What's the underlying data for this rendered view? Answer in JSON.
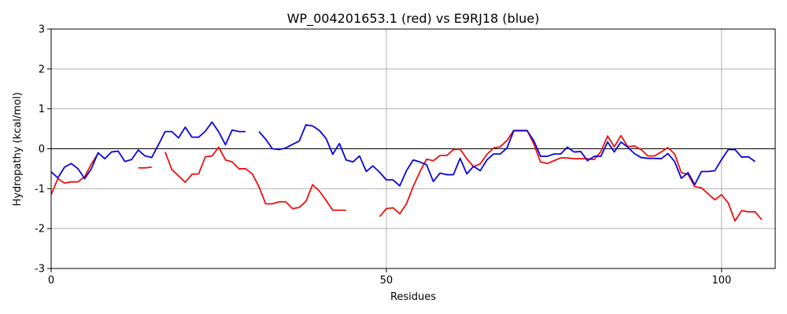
{
  "chart_data": {
    "type": "line",
    "title": "WP_004201653.1 (red) vs E9RJ18 (blue)",
    "xlabel": "Residues",
    "ylabel": "Hydropathy (kcal/mol)",
    "xlim": [
      0,
      108
    ],
    "ylim": [
      -3,
      3
    ],
    "xticks": [
      0,
      50,
      100
    ],
    "yticks": [
      -3,
      -2,
      -1,
      0,
      1,
      2,
      3
    ],
    "grid": true,
    "series": [
      {
        "color": "#e8110f",
        "segments": [
          [
            [
              0,
              -1.15
            ],
            [
              1,
              -0.75
            ],
            [
              2,
              -0.86
            ],
            [
              3,
              -0.83
            ],
            [
              4,
              -0.83
            ],
            [
              5,
              -0.7
            ],
            [
              6,
              -0.38
            ],
            [
              7,
              -0.12
            ]
          ],
          [
            [
              13,
              -0.48
            ],
            [
              14,
              -0.48
            ],
            [
              15,
              -0.46
            ]
          ],
          [
            [
              17,
              -0.08
            ],
            [
              18,
              -0.52
            ],
            [
              19,
              -0.68
            ],
            [
              20,
              -0.84
            ],
            [
              21,
              -0.64
            ],
            [
              22,
              -0.63
            ],
            [
              23,
              -0.2
            ],
            [
              24,
              -0.18
            ],
            [
              25,
              0.04
            ],
            [
              26,
              -0.28
            ],
            [
              27,
              -0.33
            ],
            [
              28,
              -0.5
            ],
            [
              29,
              -0.5
            ],
            [
              30,
              -0.63
            ],
            [
              31,
              -0.95
            ],
            [
              32,
              -1.38
            ],
            [
              33,
              -1.38
            ],
            [
              34,
              -1.33
            ],
            [
              35,
              -1.33
            ],
            [
              36,
              -1.5
            ],
            [
              37,
              -1.47
            ],
            [
              38,
              -1.32
            ],
            [
              39,
              -0.9
            ],
            [
              40,
              -1.06
            ],
            [
              41,
              -1.29
            ],
            [
              42,
              -1.54
            ],
            [
              43,
              -1.54
            ],
            [
              44,
              -1.54
            ]
          ],
          [
            [
              49,
              -1.7
            ],
            [
              50,
              -1.5
            ],
            [
              51,
              -1.48
            ],
            [
              52,
              -1.63
            ],
            [
              53,
              -1.38
            ],
            [
              54,
              -0.95
            ],
            [
              55,
              -0.58
            ],
            [
              56,
              -0.26
            ],
            [
              57,
              -0.3
            ],
            [
              58,
              -0.17
            ],
            [
              59,
              -0.17
            ],
            [
              60,
              -0.02
            ],
            [
              61,
              -0.01
            ],
            [
              62,
              -0.25
            ],
            [
              63,
              -0.45
            ],
            [
              64,
              -0.38
            ],
            [
              65,
              -0.14
            ],
            [
              66,
              0.02
            ],
            [
              67,
              0.05
            ],
            [
              68,
              0.21
            ],
            [
              69,
              0.46
            ],
            [
              70,
              0.46
            ],
            [
              71,
              0.46
            ],
            [
              72,
              0.12
            ],
            [
              73,
              -0.33
            ],
            [
              74,
              -0.37
            ],
            [
              75,
              -0.3
            ],
            [
              76,
              -0.23
            ],
            [
              77,
              -0.23
            ],
            [
              78,
              -0.25
            ],
            [
              79,
              -0.25
            ],
            [
              80,
              -0.25
            ],
            [
              81,
              -0.27
            ],
            [
              82,
              -0.07
            ],
            [
              83,
              0.32
            ],
            [
              84,
              0.05
            ],
            [
              85,
              0.33
            ],
            [
              86,
              0.05
            ],
            [
              87,
              0.07
            ],
            [
              88,
              -0.02
            ],
            [
              89,
              -0.18
            ],
            [
              90,
              -0.18
            ],
            [
              91,
              -0.08
            ],
            [
              92,
              0.03
            ],
            [
              93,
              -0.13
            ],
            [
              94,
              -0.6
            ],
            [
              95,
              -0.64
            ],
            [
              96,
              -0.95
            ],
            [
              97,
              -0.98
            ],
            [
              98,
              -1.13
            ],
            [
              99,
              -1.28
            ],
            [
              100,
              -1.15
            ],
            [
              101,
              -1.36
            ],
            [
              102,
              -1.81
            ],
            [
              103,
              -1.55
            ],
            [
              104,
              -1.58
            ],
            [
              105,
              -1.58
            ],
            [
              106,
              -1.78
            ]
          ]
        ]
      },
      {
        "color": "#0a04dc",
        "segments": [
          [
            [
              0,
              -0.58
            ],
            [
              1,
              -0.73
            ],
            [
              2,
              -0.46
            ],
            [
              3,
              -0.37
            ],
            [
              4,
              -0.5
            ],
            [
              5,
              -0.75
            ],
            [
              6,
              -0.5
            ],
            [
              7,
              -0.1
            ],
            [
              8,
              -0.25
            ],
            [
              9,
              -0.08
            ],
            [
              10,
              -0.06
            ],
            [
              11,
              -0.32
            ],
            [
              12,
              -0.27
            ],
            [
              13,
              -0.03
            ],
            [
              14,
              -0.18
            ],
            [
              15,
              -0.22
            ],
            [
              16,
              0.1
            ],
            [
              17,
              0.43
            ],
            [
              18,
              0.43
            ],
            [
              19,
              0.27
            ],
            [
              20,
              0.54
            ],
            [
              21,
              0.29
            ],
            [
              22,
              0.29
            ],
            [
              23,
              0.44
            ],
            [
              24,
              0.67
            ],
            [
              25,
              0.42
            ],
            [
              26,
              0.1
            ],
            [
              27,
              0.47
            ],
            [
              28,
              0.43
            ],
            [
              29,
              0.43
            ]
          ],
          [
            [
              31,
              0.43
            ],
            [
              32,
              0.24
            ],
            [
              33,
              0.0
            ],
            [
              34,
              -0.02
            ],
            [
              35,
              0.02
            ],
            [
              36,
              0.11
            ],
            [
              37,
              0.19
            ],
            [
              38,
              0.6
            ],
            [
              39,
              0.57
            ],
            [
              40,
              0.46
            ],
            [
              41,
              0.26
            ],
            [
              42,
              -0.14
            ],
            [
              43,
              0.13
            ],
            [
              44,
              -0.28
            ],
            [
              45,
              -0.33
            ],
            [
              46,
              -0.18
            ],
            [
              47,
              -0.57
            ],
            [
              48,
              -0.43
            ],
            [
              49,
              -0.59
            ],
            [
              50,
              -0.78
            ],
            [
              51,
              -0.78
            ],
            [
              52,
              -0.93
            ],
            [
              53,
              -0.55
            ],
            [
              54,
              -0.28
            ],
            [
              55,
              -0.33
            ],
            [
              56,
              -0.4
            ],
            [
              57,
              -0.82
            ],
            [
              58,
              -0.61
            ],
            [
              59,
              -0.65
            ],
            [
              60,
              -0.65
            ],
            [
              61,
              -0.24
            ],
            [
              62,
              -0.63
            ],
            [
              63,
              -0.44
            ],
            [
              64,
              -0.55
            ],
            [
              65,
              -0.28
            ],
            [
              66,
              -0.13
            ],
            [
              67,
              -0.13
            ],
            [
              68,
              0.02
            ],
            [
              69,
              0.45
            ],
            [
              70,
              0.45
            ],
            [
              71,
              0.45
            ],
            [
              72,
              0.2
            ],
            [
              73,
              -0.19
            ],
            [
              74,
              -0.19
            ],
            [
              75,
              -0.13
            ],
            [
              76,
              -0.13
            ],
            [
              77,
              0.04
            ],
            [
              78,
              -0.08
            ],
            [
              79,
              -0.07
            ],
            [
              80,
              -0.3
            ],
            [
              81,
              -0.19
            ],
            [
              82,
              -0.19
            ],
            [
              83,
              0.17
            ],
            [
              84,
              -0.08
            ],
            [
              85,
              0.17
            ],
            [
              86,
              0.04
            ],
            [
              87,
              -0.12
            ],
            [
              88,
              -0.22
            ],
            [
              89,
              -0.24
            ],
            [
              90,
              -0.24
            ],
            [
              91,
              -0.25
            ],
            [
              92,
              -0.12
            ],
            [
              93,
              -0.32
            ],
            [
              94,
              -0.74
            ],
            [
              95,
              -0.6
            ],
            [
              96,
              -0.9
            ],
            [
              97,
              -0.57
            ],
            [
              98,
              -0.57
            ],
            [
              99,
              -0.55
            ],
            [
              100,
              -0.27
            ],
            [
              101,
              -0.02
            ],
            [
              102,
              -0.02
            ],
            [
              103,
              -0.21
            ],
            [
              104,
              -0.2
            ],
            [
              105,
              -0.32
            ]
          ]
        ]
      }
    ]
  }
}
